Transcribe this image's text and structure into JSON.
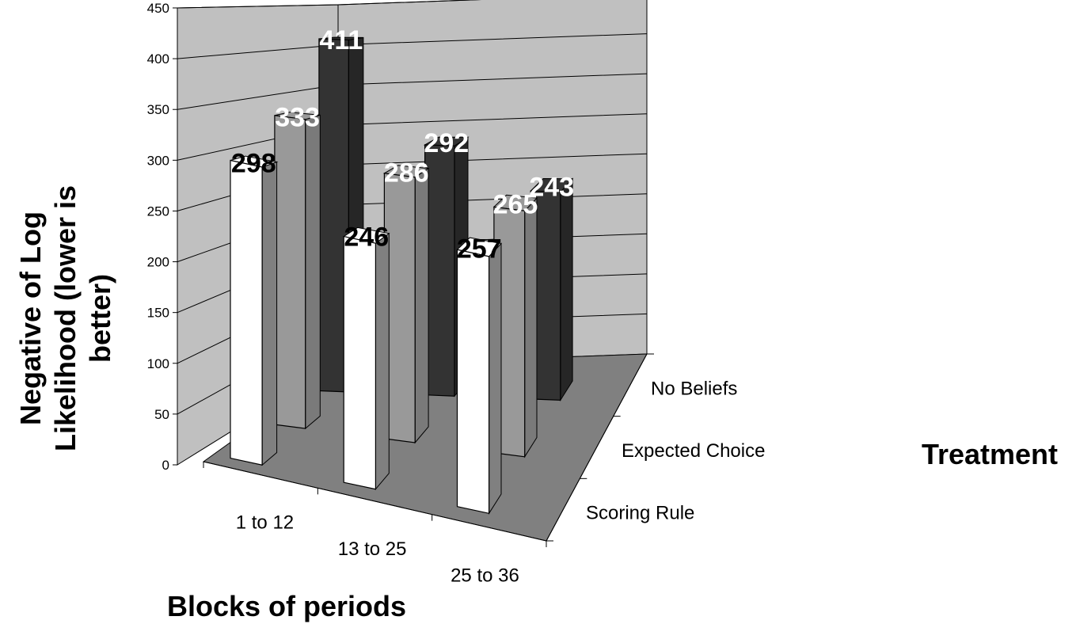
{
  "chart_data": {
    "type": "bar",
    "subtype": "3d-clustered-columns",
    "title": "",
    "xlabel": "Blocks of periods",
    "ylabel_lines": [
      "Negative of Log",
      "Likelihood (lower is",
      "better)"
    ],
    "depth_label": "Treatment",
    "categories": [
      "1 to 12",
      "13 to 25",
      "25 to 36"
    ],
    "ylim": [
      0,
      450
    ],
    "yticks": [
      "0",
      "50",
      "100",
      "150",
      "200",
      "250",
      "300",
      "350",
      "400",
      "450"
    ],
    "grid": true,
    "series": [
      {
        "name": "Scoring Rule",
        "values": [
          298,
          246,
          257
        ],
        "color": "#ffffff",
        "side": "#808080",
        "label_color": "#000000"
      },
      {
        "name": "Expected Choice",
        "values": [
          333,
          286,
          265
        ],
        "color": "#999999",
        "side": "#7a7a7a",
        "label_color": "#ffffff"
      },
      {
        "name": "No Beliefs",
        "values": [
          411,
          292,
          243
        ],
        "color": "#333333",
        "side": "#262626",
        "label_color": "#ffffff"
      }
    ],
    "data_labels": [
      [
        "298",
        "246",
        "257"
      ],
      [
        "333",
        "286",
        "265"
      ],
      [
        "411",
        "292",
        "243"
      ]
    ],
    "colors": {
      "wall": "#c0c0c0",
      "floor": "#808080"
    }
  }
}
